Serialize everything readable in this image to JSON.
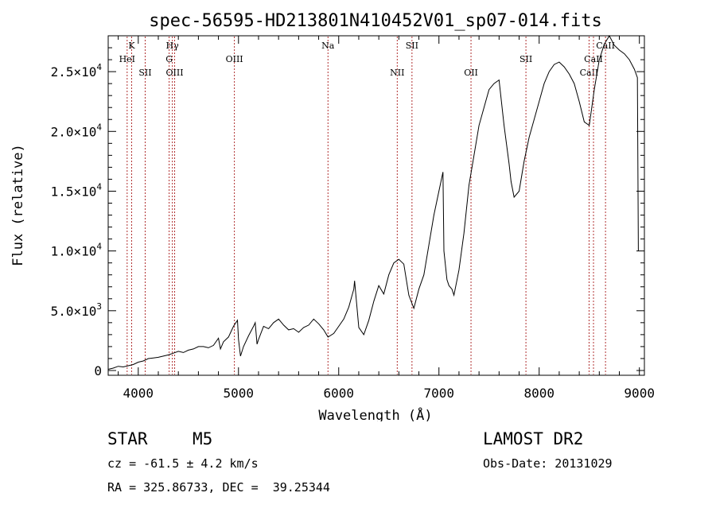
{
  "chart_data": {
    "type": "line",
    "title": "spec-56595-HD213801N410452V01_sp07-014.fits",
    "xlabel": "Wavelength (Å)",
    "ylabel": "Flux (relative)",
    "xlim": [
      3700,
      9050
    ],
    "ylim": [
      -400,
      28000
    ],
    "x_ticks": [
      4000,
      5000,
      6000,
      7000,
      8000,
      9000
    ],
    "x_tick_labels": [
      "4000",
      "5000",
      "6000",
      "7000",
      "8000",
      "9000"
    ],
    "y_ticks": [
      {
        "value": 0,
        "mant": "0",
        "exp": ""
      },
      {
        "value": 5000,
        "mant": "5.0×10",
        "exp": "3"
      },
      {
        "value": 10000,
        "mant": "1.0×10",
        "exp": "4"
      },
      {
        "value": 15000,
        "mant": "1.5×10",
        "exp": "4"
      },
      {
        "value": 20000,
        "mant": "2.0×10",
        "exp": "4"
      },
      {
        "value": 25000,
        "mant": "2.5×10",
        "exp": "4"
      }
    ],
    "series": [
      {
        "color": "#000000",
        "x": [
          3700,
          3750,
          3800,
          3850,
          3900,
          3950,
          4000,
          4050,
          4100,
          4150,
          4200,
          4250,
          4300,
          4350,
          4400,
          4450,
          4500,
          4550,
          4600,
          4650,
          4700,
          4750,
          4800,
          4820,
          4850,
          4900,
          4950,
          4990,
          5000,
          5020,
          5050,
          5100,
          5150,
          5167,
          5185,
          5200,
          5250,
          5300,
          5350,
          5400,
          5450,
          5500,
          5550,
          5600,
          5650,
          5700,
          5750,
          5800,
          5850,
          5893,
          5950,
          6000,
          6050,
          6100,
          6150,
          6158,
          6200,
          6250,
          6300,
          6350,
          6400,
          6450,
          6500,
          6550,
          6600,
          6650,
          6700,
          6750,
          6800,
          6850,
          6900,
          6950,
          7000,
          7040,
          7050,
          7080,
          7100,
          7130,
          7150,
          7200,
          7250,
          7300,
          7350,
          7400,
          7450,
          7500,
          7550,
          7600,
          7650,
          7700,
          7720,
          7750,
          7800,
          7850,
          7900,
          7950,
          8000,
          8050,
          8100,
          8150,
          8200,
          8250,
          8300,
          8350,
          8400,
          8450,
          8500,
          8550,
          8600,
          8650,
          8700,
          8750,
          8800,
          8850,
          8900,
          8950,
          8980,
          8990
        ],
        "y": [
          100,
          200,
          350,
          300,
          400,
          500,
          700,
          800,
          1000,
          1050,
          1100,
          1200,
          1300,
          1450,
          1600,
          1500,
          1700,
          1800,
          2000,
          2000,
          1900,
          2100,
          2700,
          1800,
          2400,
          2800,
          3700,
          4200,
          2600,
          1200,
          2000,
          2900,
          3700,
          4000,
          2200,
          2600,
          3700,
          3500,
          4000,
          4300,
          3800,
          3400,
          3500,
          3200,
          3600,
          3800,
          4300,
          3900,
          3400,
          2800,
          3100,
          3700,
          4300,
          5300,
          6800,
          7500,
          3600,
          3000,
          4200,
          5800,
          7100,
          6400,
          8000,
          9000,
          9300,
          8900,
          6300,
          5200,
          6800,
          8000,
          10500,
          13000,
          15000,
          16600,
          10000,
          7600,
          7100,
          6800,
          6300,
          8400,
          11500,
          15500,
          18000,
          20500,
          22000,
          23500,
          24000,
          24300,
          20500,
          17300,
          15800,
          14500,
          15000,
          17500,
          19500,
          21000,
          22500,
          24000,
          25000,
          25600,
          25800,
          25400,
          24800,
          24000,
          22500,
          20800,
          20500,
          23500,
          26000,
          27300,
          28000,
          27200,
          26800,
          26500,
          26000,
          25200,
          24500,
          10000
        ]
      }
    ],
    "line_markers": [
      {
        "label": "K",
        "x": 3934,
        "row": 0
      },
      {
        "label": "HeI",
        "x": 3889,
        "row": 1
      },
      {
        "label": "SII",
        "x": 4069,
        "row": 2
      },
      {
        "label": "Hγ",
        "x": 4340,
        "row": 0
      },
      {
        "label": "G",
        "x": 4308,
        "row": 1
      },
      {
        "label": "OIII",
        "x": 4363,
        "row": 2
      },
      {
        "label": "OIII",
        "x": 4959,
        "row": 1
      },
      {
        "label": "Na",
        "x": 5893,
        "row": 0
      },
      {
        "label": "NII",
        "x": 6584,
        "row": 2
      },
      {
        "label": "SII",
        "x": 6731,
        "row": 0
      },
      {
        "label": "OII",
        "x": 7320,
        "row": 2
      },
      {
        "label": "SII",
        "x": 7868,
        "row": 1
      },
      {
        "label": "CaII",
        "x": 8498,
        "row": 2
      },
      {
        "label": "CaII",
        "x": 8542,
        "row": 1
      },
      {
        "label": "CaII",
        "x": 8662,
        "row": 0
      }
    ],
    "grid": false,
    "legend": "none"
  },
  "info": {
    "class": "STAR",
    "subclass": "M5",
    "survey": "LAMOST DR2",
    "cz": "cz = -61.5 ± 4.2 km/s",
    "obs_date": "Obs-Date: 20131029",
    "radec": "RA = 325.86733, DEC =  39.25344"
  },
  "colors": {
    "spectrum": "#000000",
    "marker": "#b03030"
  }
}
